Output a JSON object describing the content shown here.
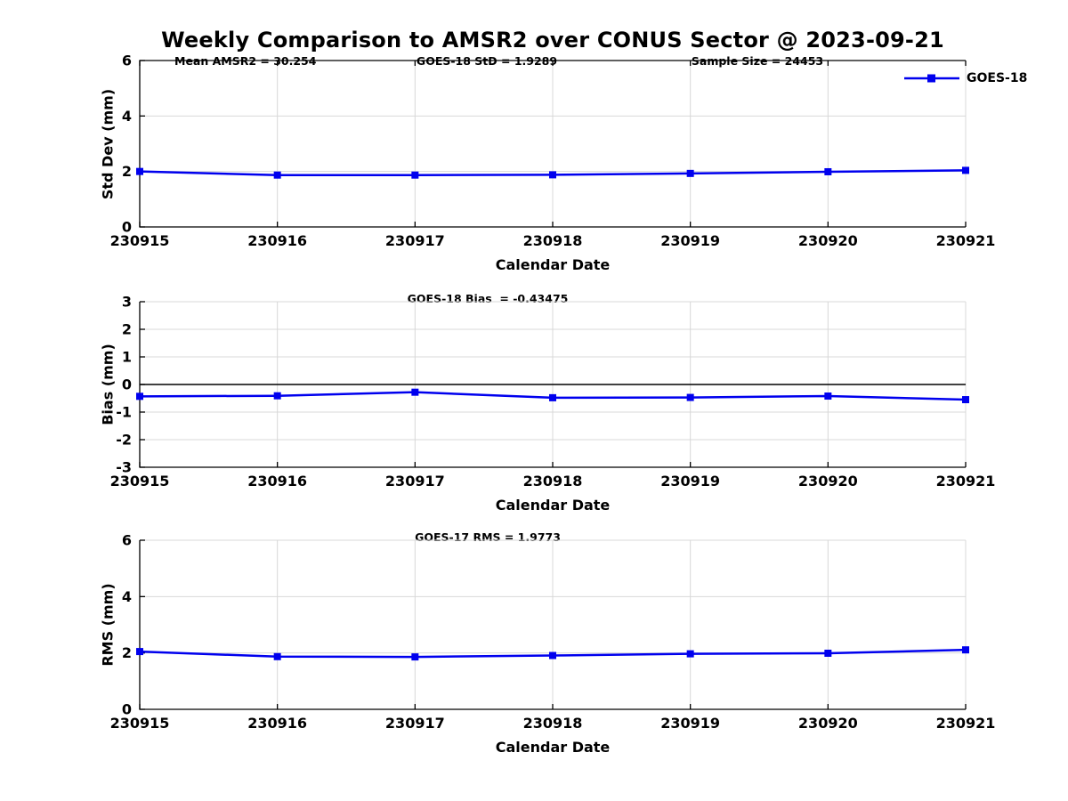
{
  "title": "Weekly Comparison to AMSR2 over CONUS Sector @ 2023-09-21",
  "legend": {
    "label": "GOES-18"
  },
  "colors": {
    "line": "#0000ee",
    "grid": "#d8d8d8",
    "axis": "#000000",
    "zero_line": "#000000",
    "text": "#000000",
    "background": "#ffffff"
  },
  "chart_data": [
    {
      "type": "line",
      "panel": "std-dev",
      "annotations": [
        {
          "text": "Mean AMSR2 = 30.254"
        },
        {
          "text": "GOES-18 StD = 1.9289"
        },
        {
          "text": "Sample Size = 24453"
        }
      ],
      "categories": [
        "230915",
        "230916",
        "230917",
        "230918",
        "230919",
        "230920",
        "230921"
      ],
      "series": [
        {
          "name": "GOES-18",
          "values": [
            2.0,
            1.87,
            1.87,
            1.88,
            1.93,
            1.99,
            2.04
          ]
        }
      ],
      "xlabel": "Calendar Date",
      "ylabel": "Std Dev (mm)",
      "ylim": [
        0,
        6
      ],
      "yticks": [
        0,
        2,
        4,
        6
      ],
      "grid": true,
      "zero_line": false,
      "legend_position": "top-right-outside"
    },
    {
      "type": "line",
      "panel": "bias",
      "annotations": [
        {
          "text": "GOES-18 Bias  = -0.43475"
        }
      ],
      "categories": [
        "230915",
        "230916",
        "230917",
        "230918",
        "230919",
        "230920",
        "230921"
      ],
      "series": [
        {
          "name": "GOES-18",
          "values": [
            -0.43,
            -0.41,
            -0.28,
            -0.48,
            -0.47,
            -0.42,
            -0.55
          ]
        }
      ],
      "xlabel": "Calendar Date",
      "ylabel": "Bias (mm)",
      "ylim": [
        -3,
        3
      ],
      "yticks": [
        3,
        2,
        1,
        0,
        -1,
        -2,
        -3
      ],
      "grid": true,
      "zero_line": true
    },
    {
      "type": "line",
      "panel": "rms",
      "annotations": [
        {
          "text": "GOES-17 RMS = 1.9773"
        }
      ],
      "categories": [
        "230915",
        "230916",
        "230917",
        "230918",
        "230919",
        "230920",
        "230921"
      ],
      "series": [
        {
          "name": "GOES-18",
          "values": [
            2.05,
            1.87,
            1.86,
            1.91,
            1.97,
            1.99,
            2.11
          ]
        }
      ],
      "xlabel": "Calendar Date",
      "ylabel": "RMS (mm)",
      "ylim": [
        0,
        6
      ],
      "yticks": [
        0,
        2,
        4,
        6
      ],
      "grid": true,
      "zero_line": false
    }
  ]
}
